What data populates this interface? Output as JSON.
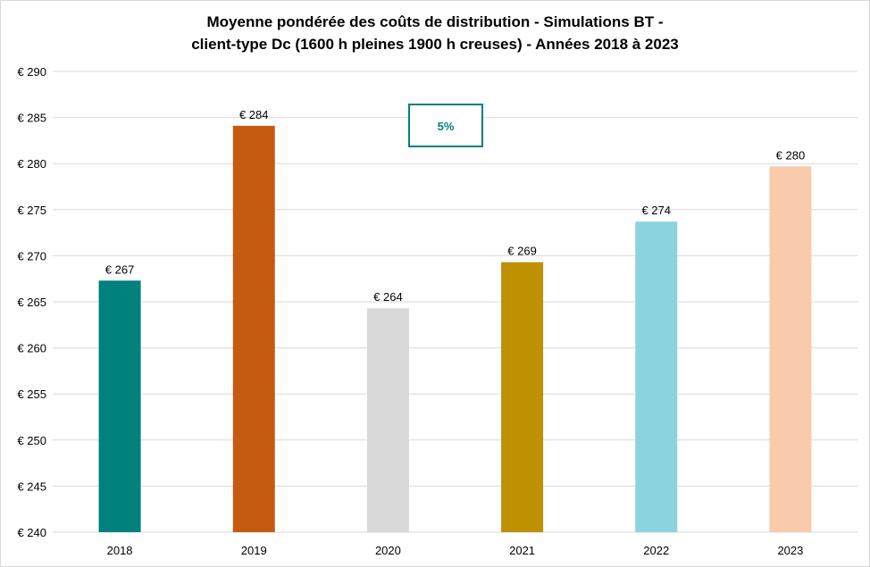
{
  "chart_data": {
    "type": "bar",
    "title_lines": [
      "Moyenne pondérée des coûts de distribution  - Simulations  BT -",
      "client-type  Dc (1600 h pleines 1900 h creuses) - Années 2018 à 2023"
    ],
    "categories": [
      "2018",
      "2019",
      "2020",
      "2021",
      "2022",
      "2023"
    ],
    "values": [
      267.3,
      284.1,
      264.3,
      269.3,
      273.7,
      279.7
    ],
    "data_labels": [
      "€ 267",
      "€ 284",
      "€ 264",
      "€ 269",
      "€ 274",
      "€ 280"
    ],
    "colors": [
      "#00817D",
      "#C55A11",
      "#D9D9D9",
      "#BF9000",
      "#8BD3DE",
      "#F8CBAD"
    ],
    "ylim": [
      240,
      290
    ],
    "yticks": [
      240,
      245,
      250,
      255,
      260,
      265,
      270,
      275,
      280,
      285,
      290
    ],
    "ytick_format": "€ {v}",
    "xlabel": "",
    "ylabel": "",
    "grid": true,
    "legend": "none",
    "annotation": {
      "text": "5%",
      "color": "#00817D"
    }
  }
}
